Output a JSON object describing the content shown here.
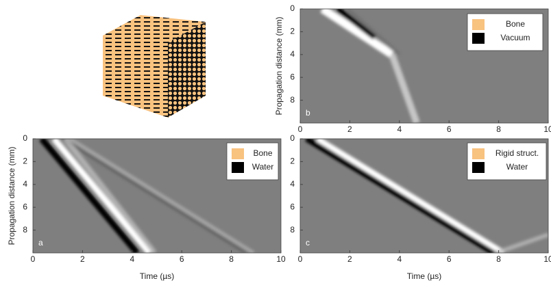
{
  "panels": [
    {
      "letter": "a",
      "ylabel": "Propagation distance (mm)",
      "xlabel": "Time (µs)",
      "xlim": [
        0,
        10
      ],
      "ylim": [
        0,
        10
      ],
      "xticks": [
        0,
        2,
        4,
        6,
        8,
        10
      ],
      "yticks": [
        0,
        2,
        4,
        6,
        8
      ],
      "legend": [
        {
          "label": "Bone",
          "color": "#f8c27f"
        },
        {
          "label": "Water",
          "color": "#000000"
        }
      ]
    },
    {
      "letter": "b",
      "ylabel": "Propagation distance (mm)",
      "xlim": [
        0,
        10
      ],
      "ylim": [
        0,
        10
      ],
      "xticks": [
        0,
        2,
        4,
        6,
        8,
        10
      ],
      "yticks": [
        0,
        2,
        4,
        6,
        8
      ],
      "legend": [
        {
          "label": "Bone",
          "color": "#f8c27f"
        },
        {
          "label": "Vacuum",
          "color": "#000000"
        }
      ]
    },
    {
      "letter": "c",
      "xlabel": "Time (µs)",
      "xlim": [
        0,
        10
      ],
      "ylim": [
        0,
        10
      ],
      "xticks": [
        0,
        2,
        4,
        6,
        8,
        10
      ],
      "yticks": [
        0,
        2,
        4,
        6,
        8
      ],
      "legend": [
        {
          "label": "Rigid struct.",
          "color": "#f8c27f"
        },
        {
          "label": "Water",
          "color": "#000000"
        }
      ]
    }
  ]
}
